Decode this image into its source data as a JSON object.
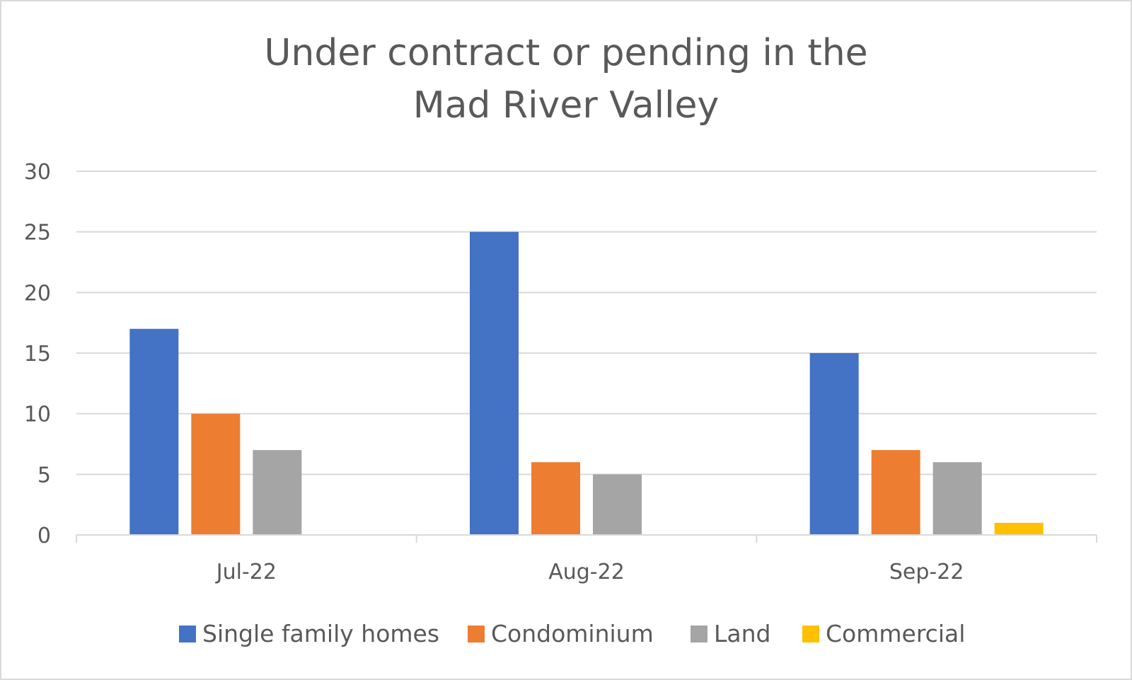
{
  "chart_data": {
    "type": "bar",
    "title_lines": [
      "Under contract or pending in the",
      "Mad River Valley"
    ],
    "categories": [
      "Jul-22",
      "Aug-22",
      "Sep-22"
    ],
    "series": [
      {
        "name": "Single family homes",
        "color": "#4472c4",
        "values": [
          17,
          25,
          15
        ]
      },
      {
        "name": "Condominium",
        "color": "#ed7d31",
        "values": [
          10,
          6,
          7
        ]
      },
      {
        "name": "Land",
        "color": "#a5a5a5",
        "values": [
          7,
          5,
          6
        ]
      },
      {
        "name": "Commercial",
        "color": "#ffc000",
        "values": [
          0,
          0,
          1
        ]
      }
    ],
    "ylim": [
      0,
      30
    ],
    "yticks": [
      0,
      5,
      10,
      15,
      20,
      25,
      30
    ],
    "grid": true,
    "legend_position": "bottom",
    "xlabel": "",
    "ylabel": ""
  }
}
